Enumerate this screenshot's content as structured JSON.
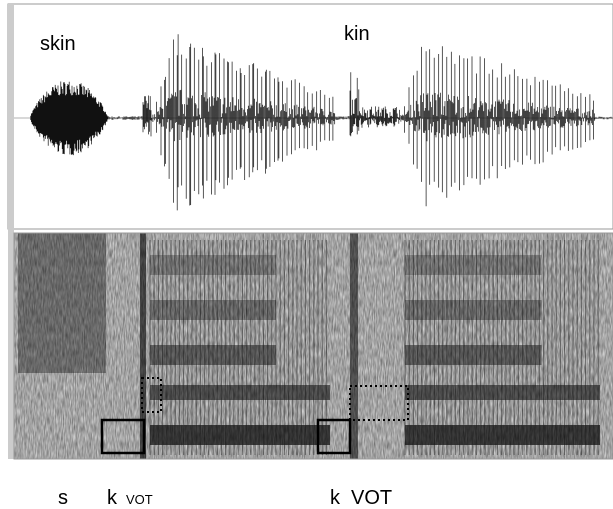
{
  "word_labels": [
    "skin",
    "kin"
  ],
  "segment_labels": [
    "s",
    "k",
    "VOT",
    "k",
    "VOT"
  ]
}
